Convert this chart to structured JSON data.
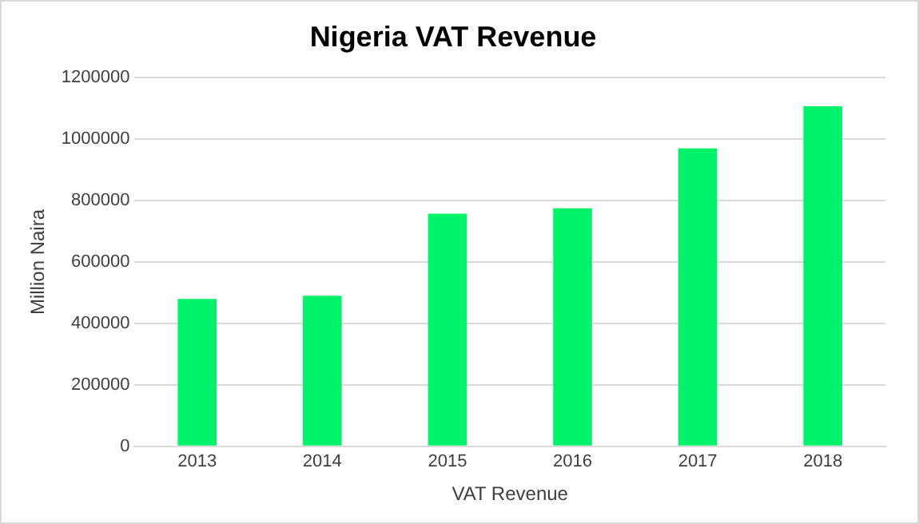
{
  "chart_data": {
    "type": "bar",
    "title": "Nigeria VAT Revenue",
    "xlabel": "VAT Revenue",
    "ylabel": "Million Naira",
    "categories": [
      "2013",
      "2014",
      "2015",
      "2016",
      "2017",
      "2018"
    ],
    "values": [
      480000,
      490000,
      757000,
      775000,
      970000,
      1107000
    ],
    "color": "#00f26a",
    "ylim": [
      0,
      1200000
    ],
    "yticks": [
      0,
      200000,
      400000,
      600000,
      800000,
      1000000,
      1200000
    ],
    "grid": "y",
    "legend": false
  }
}
